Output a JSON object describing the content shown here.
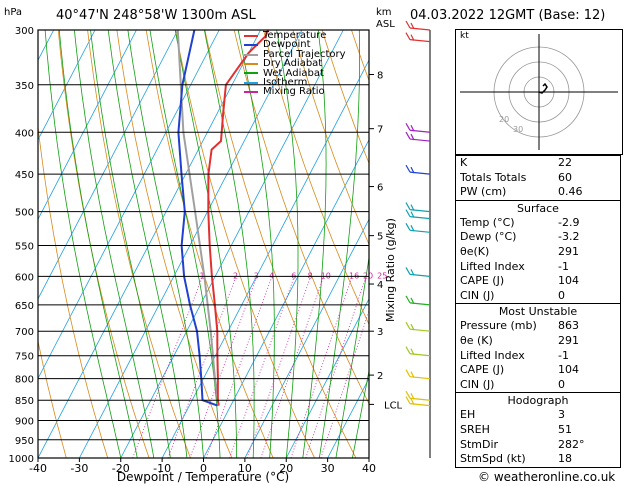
{
  "header": {
    "location": "40°47'N  248°58'W  1300m  ASL",
    "datetime": "04.03.2022  12GMT  (Base: 12)"
  },
  "chart_data": {
    "type": "skew-t",
    "title": "40°47'N 248°58'W 1300m ASL",
    "xlabel": "Dewpoint / Temperature (°C)",
    "ylabel_left": "hPa",
    "ylabel_right_top": "km",
    "ylabel_right_sub": "ASL",
    "mixing_ratio_label": "Mixing Ratio (g/kg)",
    "pressure_ticks": [
      300,
      350,
      400,
      450,
      500,
      550,
      600,
      650,
      700,
      750,
      800,
      850,
      900,
      950,
      1000
    ],
    "temp_ticks": [
      -40,
      -30,
      -20,
      -10,
      0,
      10,
      20,
      30,
      40
    ],
    "xlim": [
      -40,
      40
    ],
    "ylim": [
      1000,
      300
    ],
    "km_ticks": [
      {
        "p": 340,
        "label": "8"
      },
      {
        "p": 396,
        "label": "7"
      },
      {
        "p": 466,
        "label": "6"
      },
      {
        "p": 535,
        "label": "5"
      },
      {
        "p": 613,
        "label": "4"
      },
      {
        "p": 700,
        "label": "3"
      },
      {
        "p": 792,
        "label": "2"
      },
      {
        "p": 860,
        "label": "LCL"
      }
    ],
    "mixing_ratios": [
      1,
      2,
      3,
      4,
      6,
      8,
      10,
      16,
      20,
      25
    ],
    "mixing_ratio_labels": [
      "1",
      "2",
      "3",
      "4",
      "6",
      "8",
      "10",
      "16",
      "20",
      "25"
    ],
    "temperature_profile": [
      {
        "p": 863,
        "t": -2.9
      },
      {
        "p": 850,
        "t": -3.8
      },
      {
        "p": 800,
        "t": -6.5
      },
      {
        "p": 750,
        "t": -9.5
      },
      {
        "p": 700,
        "t": -12.6
      },
      {
        "p": 650,
        "t": -16.5
      },
      {
        "p": 600,
        "t": -20.8
      },
      {
        "p": 550,
        "t": -25.2
      },
      {
        "p": 500,
        "t": -29.8
      },
      {
        "p": 450,
        "t": -34.5
      },
      {
        "p": 420,
        "t": -36.8
      },
      {
        "p": 410,
        "t": -35.6
      },
      {
        "p": 380,
        "t": -38.5
      },
      {
        "p": 350,
        "t": -41.5
      },
      {
        "p": 320,
        "t": -40.0
      },
      {
        "p": 305,
        "t": -38.0
      },
      {
        "p": 300,
        "t": -38.2
      }
    ],
    "dewpoint_profile": [
      {
        "p": 863,
        "t": -3.2
      },
      {
        "p": 850,
        "t": -7.5
      },
      {
        "p": 800,
        "t": -10.5
      },
      {
        "p": 750,
        "t": -13.8
      },
      {
        "p": 700,
        "t": -17.5
      },
      {
        "p": 650,
        "t": -22.5
      },
      {
        "p": 600,
        "t": -27.5
      },
      {
        "p": 550,
        "t": -32.0
      },
      {
        "p": 500,
        "t": -35.5
      },
      {
        "p": 450,
        "t": -41.0
      },
      {
        "p": 400,
        "t": -47.0
      },
      {
        "p": 350,
        "t": -52.0
      },
      {
        "p": 300,
        "t": -56.0
      }
    ],
    "parcel_profile": [
      {
        "p": 863,
        "t": -2.9
      },
      {
        "p": 800,
        "t": -7.2
      },
      {
        "p": 700,
        "t": -14.2
      },
      {
        "p": 600,
        "t": -22.6
      },
      {
        "p": 500,
        "t": -33.0
      },
      {
        "p": 400,
        "t": -45.8
      },
      {
        "p": 300,
        "t": -60.0
      }
    ],
    "legend": [
      {
        "label": "Temperature",
        "color": "#e03030"
      },
      {
        "label": "Dewpoint",
        "color": "#2040d0"
      },
      {
        "label": "Parcel Trajectory",
        "color": "#a0a0a0"
      },
      {
        "label": "Dry Adiabat",
        "color": "#d88a1a"
      },
      {
        "label": "Wet Adiabat",
        "color": "#10a010"
      },
      {
        "label": "Isotherm",
        "color": "#20a0e0"
      },
      {
        "label": "Mixing Ratio",
        "color": "#d020a0"
      }
    ],
    "wind_barbs": [
      {
        "p": 300,
        "color": "#e03030"
      },
      {
        "p": 310,
        "color": "#e03030"
      },
      {
        "p": 400,
        "color": "#a020c0"
      },
      {
        "p": 410,
        "color": "#a020c0"
      },
      {
        "p": 450,
        "color": "#2040d0"
      },
      {
        "p": 500,
        "color": "#10a0b0"
      },
      {
        "p": 510,
        "color": "#10a0b0"
      },
      {
        "p": 530,
        "color": "#10a0b0"
      },
      {
        "p": 600,
        "color": "#10a0b0"
      },
      {
        "p": 650,
        "color": "#20b020"
      },
      {
        "p": 700,
        "color": "#a0c820"
      },
      {
        "p": 750,
        "color": "#a0c820"
      },
      {
        "p": 800,
        "color": "#e0c000"
      },
      {
        "p": 850,
        "color": "#e0c000"
      },
      {
        "p": 863,
        "color": "#e0c000"
      }
    ]
  },
  "hodograph": {
    "label": "kt",
    "ring_labels": [
      "20",
      "30"
    ],
    "points": [
      [
        0,
        0
      ],
      [
        3,
        -1
      ],
      [
        6,
        2
      ],
      [
        8,
        5
      ],
      [
        6,
        8
      ],
      [
        4,
        6
      ]
    ]
  },
  "stats": {
    "indices": [
      {
        "label": "K",
        "value": "22"
      },
      {
        "label": "Totals Totals",
        "value": "60"
      },
      {
        "label": "PW (cm)",
        "value": "0.46"
      }
    ],
    "surface": {
      "title": "Surface",
      "rows": [
        {
          "label": "Temp (°C)",
          "value": "-2.9"
        },
        {
          "label": "Dewp (°C)",
          "value": "-3.2"
        },
        {
          "label": "θe(K)",
          "value": "291"
        },
        {
          "label": "Lifted Index",
          "value": "-1"
        },
        {
          "label": "CAPE (J)",
          "value": "104"
        },
        {
          "label": "CIN (J)",
          "value": "0"
        }
      ]
    },
    "most_unstable": {
      "title": "Most Unstable",
      "rows": [
        {
          "label": "Pressure (mb)",
          "value": "863"
        },
        {
          "label": "θe (K)",
          "value": "291"
        },
        {
          "label": "Lifted Index",
          "value": "-1"
        },
        {
          "label": "CAPE (J)",
          "value": "104"
        },
        {
          "label": "CIN (J)",
          "value": "0"
        }
      ]
    },
    "hodograph": {
      "title": "Hodograph",
      "rows": [
        {
          "label": "EH",
          "value": "3"
        },
        {
          "label": "SREH",
          "value": "51"
        },
        {
          "label": "StmDir",
          "value": "282°"
        },
        {
          "label": "StmSpd (kt)",
          "value": "18"
        }
      ]
    }
  },
  "footer": {
    "copyright": "© weatheronline.co.uk"
  }
}
